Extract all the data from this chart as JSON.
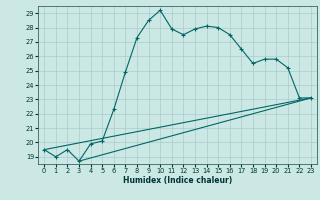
{
  "xlabel": "Humidex (Indice chaleur)",
  "bg_color": "#cce8e4",
  "grid_color": "#aacccc",
  "line_color": "#006666",
  "xlim": [
    -0.5,
    23.5
  ],
  "ylim": [
    18.5,
    29.5
  ],
  "xticks": [
    0,
    1,
    2,
    3,
    4,
    5,
    6,
    7,
    8,
    9,
    10,
    11,
    12,
    13,
    14,
    15,
    16,
    17,
    18,
    19,
    20,
    21,
    22,
    23
  ],
  "yticks": [
    19,
    20,
    21,
    22,
    23,
    24,
    25,
    26,
    27,
    28,
    29
  ],
  "line1_x": [
    0,
    1,
    2,
    3,
    4,
    5,
    6,
    7,
    8,
    9,
    10,
    11,
    12,
    13,
    14,
    15,
    16,
    17,
    18,
    19,
    20,
    21,
    22,
    23
  ],
  "line1_y": [
    19.5,
    19.0,
    19.5,
    18.7,
    19.9,
    20.1,
    22.3,
    24.9,
    27.3,
    28.5,
    29.2,
    27.9,
    27.5,
    27.9,
    28.1,
    28.0,
    27.5,
    26.5,
    25.5,
    25.8,
    25.8,
    25.2,
    23.1,
    23.1
  ],
  "line2_x": [
    0,
    23
  ],
  "line2_y": [
    19.5,
    23.1
  ],
  "line3_x": [
    3,
    23
  ],
  "line3_y": [
    18.7,
    23.1
  ]
}
